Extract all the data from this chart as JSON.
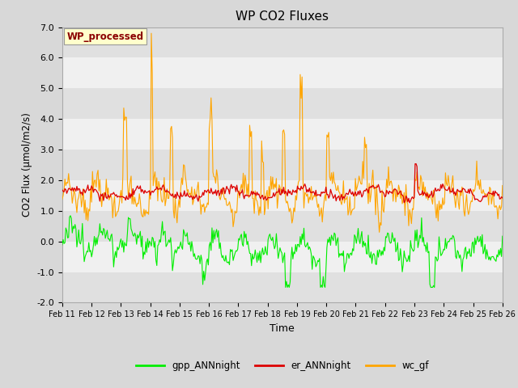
{
  "title": "WP CO2 Fluxes",
  "xlabel": "Time",
  "ylabel": "CO2 Flux (μmol/m2/s)",
  "ylim": [
    -2.0,
    7.0
  ],
  "yticks": [
    -2.0,
    -1.0,
    0.0,
    1.0,
    2.0,
    3.0,
    4.0,
    5.0,
    6.0,
    7.0
  ],
  "x_labels": [
    "Feb 11",
    "Feb 12",
    "Feb 13",
    "Feb 14",
    "Feb 15",
    "Feb 16",
    "Feb 17",
    "Feb 18",
    "Feb 19",
    "Feb 20",
    "Feb 21",
    "Feb 22",
    "Feb 23",
    "Feb 24",
    "Feb 25",
    "Feb 26"
  ],
  "n_points": 480,
  "colors": {
    "gpp": "#00ee00",
    "er": "#dd0000",
    "wc": "#ffa500"
  },
  "bg_color": "#d8d8d8",
  "plot_bg_light": "#f0f0f0",
  "plot_bg_dark": "#e0e0e0",
  "annotation_text": "WP_processed",
  "annotation_color": "#8b0000",
  "annotation_bg": "#ffffcc",
  "legend_labels": [
    "gpp_ANNnight",
    "er_ANNnight",
    "wc_gf"
  ]
}
